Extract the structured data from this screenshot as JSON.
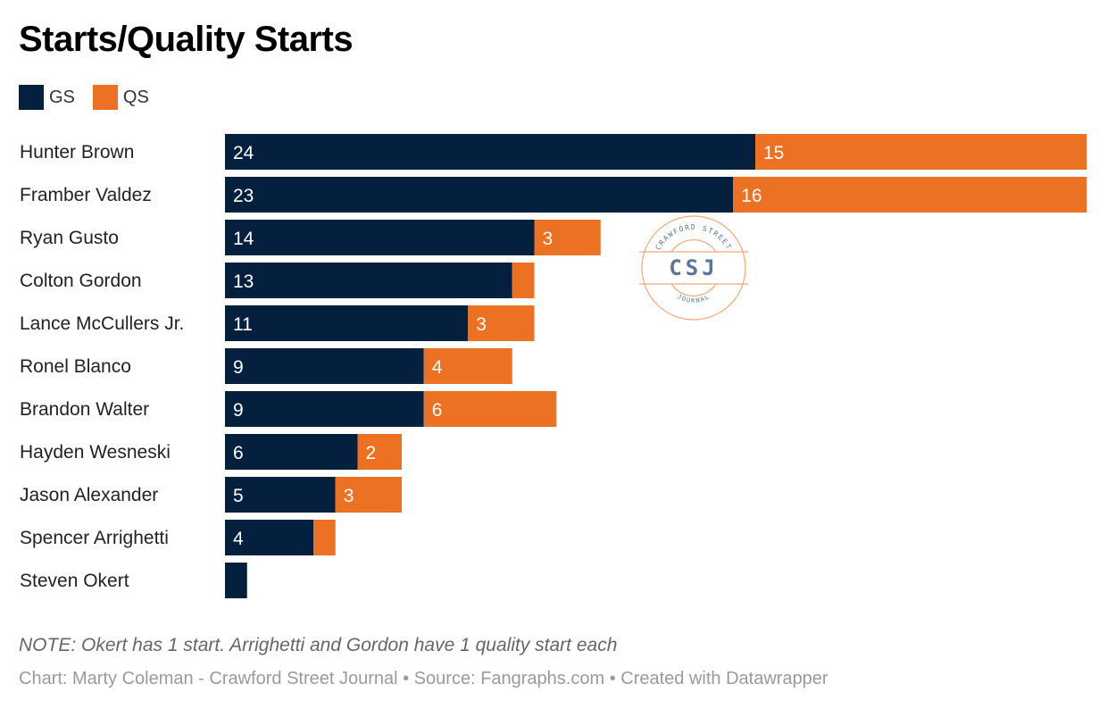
{
  "chart_data": {
    "type": "bar",
    "orientation": "horizontal",
    "stacked": true,
    "title": "Starts/Quality Starts",
    "categories": [
      "Hunter Brown",
      "Framber Valdez",
      "Ryan Gusto",
      "Colton Gordon",
      "Lance McCullers Jr.",
      "Ronel Blanco",
      "Brandon Walter",
      "Hayden Wesneski",
      "Jason Alexander",
      "Spencer Arrighetti",
      "Steven Okert"
    ],
    "series": [
      {
        "name": "GS",
        "color": "#05203f",
        "values": [
          24,
          23,
          14,
          13,
          11,
          9,
          9,
          6,
          5,
          4,
          1
        ]
      },
      {
        "name": "QS",
        "color": "#ec7123",
        "values": [
          15,
          16,
          3,
          1,
          3,
          4,
          6,
          2,
          3,
          1,
          0
        ]
      }
    ],
    "legend_position": "top-left",
    "grid": false
  },
  "note": "NOTE: Okert has 1 start. Arrighetti and Gordon have 1 quality start each",
  "credit": "Chart: Marty Coleman - Crawford Street Journal • Source: Fangraphs.com • Created with Datawrapper",
  "watermark": {
    "top": "CRAWFORD STREET",
    "center": "CSJ",
    "bottom": "JOURNAL"
  }
}
